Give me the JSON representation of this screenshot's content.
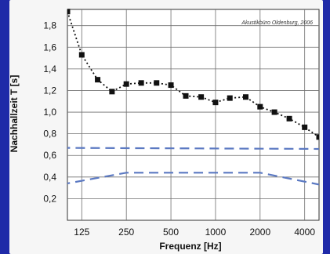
{
  "colors": {
    "frame": "#1f2aa8",
    "panel": "#f6f6f6",
    "plot": "#ffffff",
    "grid": "#6f6f6f",
    "measured": "#111111",
    "band": "#5b79c2"
  },
  "chart_data": {
    "type": "line",
    "annotation": "Akustikbüro Oldenburg, 2006",
    "xlabel": "Frequenz [Hz]",
    "ylabel": "Nachhallzeit T [s]",
    "x_scale": "log",
    "xlim": [
      100,
      5000
    ],
    "ylim": [
      0,
      1.95
    ],
    "grid": true,
    "x_ticks": [
      125,
      250,
      500,
      1000,
      2000,
      4000
    ],
    "x_tick_labels": [
      "125",
      "250",
      "500",
      "1000",
      "2000",
      "4000"
    ],
    "y_ticks": [
      0.2,
      0.4,
      0.6,
      0.8,
      1.0,
      1.2,
      1.4,
      1.6,
      1.8
    ],
    "y_tick_labels": [
      "0,2",
      "0,4",
      "0,6",
      "0,8",
      "1,0",
      "1,2",
      "1,4",
      "1,6",
      "1,8"
    ],
    "series": [
      {
        "style": "dotted-squares",
        "x": [
          100,
          125,
          160,
          200,
          250,
          315,
          400,
          500,
          630,
          800,
          1000,
          1250,
          1600,
          2000,
          2500,
          3150,
          4000,
          5000
        ],
        "y": [
          1.93,
          1.53,
          1.3,
          1.19,
          1.26,
          1.27,
          1.27,
          1.25,
          1.15,
          1.14,
          1.09,
          1.13,
          1.14,
          1.05,
          1.0,
          0.94,
          0.86,
          0.77
        ]
      },
      {
        "style": "dashed",
        "x": [
          90,
          5500
        ],
        "y": [
          0.67,
          0.66
        ]
      },
      {
        "style": "dashed",
        "x": [
          90,
          250,
          2000,
          5500
        ],
        "y": [
          0.33,
          0.44,
          0.44,
          0.32
        ]
      }
    ]
  }
}
